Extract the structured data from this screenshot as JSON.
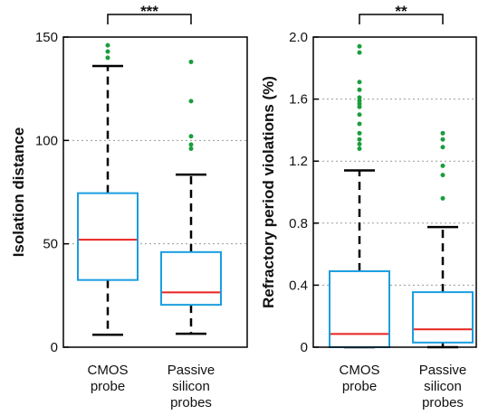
{
  "chart_data": [
    {
      "type": "box",
      "ylabel": "Isolation distance",
      "ylim": [
        0,
        150
      ],
      "yticks": [
        "0",
        "50",
        "100",
        "150"
      ],
      "ytick_values": [
        0,
        50,
        100,
        150
      ],
      "grid": "horizontal-dotted",
      "categories": [
        [
          "CMOS",
          "probe"
        ],
        [
          "Passive",
          "silicon",
          "probes"
        ]
      ],
      "boxes": [
        {
          "min": 6,
          "q1": 32.5,
          "median": 52,
          "q3": 74.5,
          "max": 136,
          "outliers": [
            140,
            143,
            146
          ]
        },
        {
          "min": 6.5,
          "q1": 20.5,
          "median": 26.5,
          "q3": 46,
          "max": 83.5,
          "outliers": [
            96,
            98,
            102,
            119,
            138
          ]
        }
      ],
      "significance": "***",
      "colors": {
        "box": "#1a9ee0",
        "median": "#e8231f",
        "whisker": "#000000",
        "outlier": "#1a9e3c"
      }
    },
    {
      "type": "box",
      "ylabel": "Refractory period violations (%)",
      "ylim": [
        0,
        2.0
      ],
      "yticks": [
        "0",
        "0.4",
        "0.8",
        "1.2",
        "1.6",
        "2.0"
      ],
      "ytick_values": [
        0,
        0.4,
        0.8,
        1.2,
        1.6,
        2.0
      ],
      "grid": "horizontal-dotted",
      "categories": [
        [
          "CMOS",
          "probe"
        ],
        [
          "Passive",
          "silicon",
          "probes"
        ]
      ],
      "boxes": [
        {
          "min": 0,
          "q1": 0,
          "median": 0.085,
          "q3": 0.49,
          "max": 1.14,
          "outliers": [
            1.28,
            1.31,
            1.34,
            1.38,
            1.44,
            1.5,
            1.55,
            1.57,
            1.59,
            1.61,
            1.66,
            1.71,
            1.9,
            1.94
          ]
        },
        {
          "min": 0,
          "q1": 0.03,
          "median": 0.115,
          "q3": 0.355,
          "max": 0.775,
          "outliers": [
            0.96,
            1.11,
            1.17,
            1.29,
            1.34,
            1.38
          ]
        }
      ],
      "significance": "**",
      "colors": {
        "box": "#1a9ee0",
        "median": "#e8231f",
        "whisker": "#000000",
        "outlier": "#1a9e3c"
      }
    }
  ]
}
